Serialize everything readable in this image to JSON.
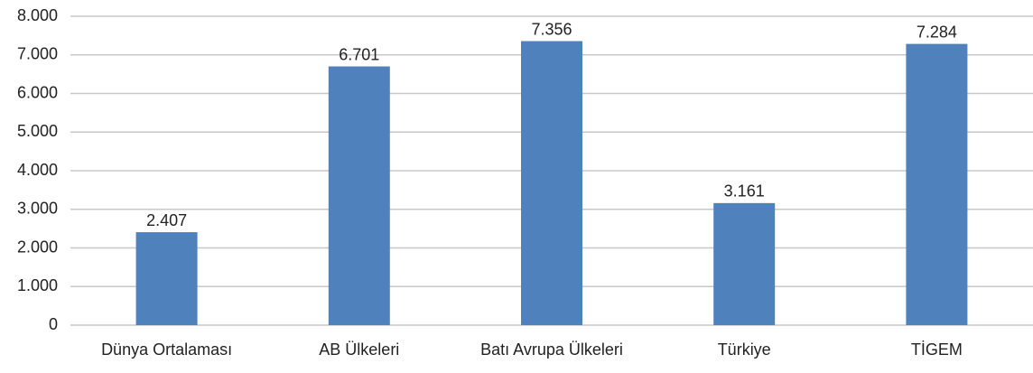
{
  "chart_data": {
    "type": "bar",
    "categories": [
      "Dünya Ortalaması",
      "AB Ülkeleri",
      "Batı Avrupa Ülkeleri",
      "Türkiye",
      "TİGEM"
    ],
    "values": [
      2407,
      6701,
      7356,
      3161,
      7284
    ],
    "value_labels": [
      "2.407",
      "6.701",
      "7.356",
      "3.161",
      "7.284"
    ],
    "color": "#4f81bd",
    "ylim": [
      0,
      8000
    ],
    "yticks": [
      0,
      {
        "value": 1000,
        "label": "1.000"
      },
      {
        "value": 2000,
        "label": "2.000"
      },
      {
        "value": 3000,
        "label": "3.000"
      },
      {
        "value": 4000,
        "label": "4.000"
      },
      {
        "value": 5000,
        "label": "5.000"
      },
      {
        "value": 6000,
        "label": "6.000"
      },
      {
        "value": 7000,
        "label": "7.000"
      },
      {
        "value": 8000,
        "label": "8.000"
      }
    ],
    "grid": true
  }
}
